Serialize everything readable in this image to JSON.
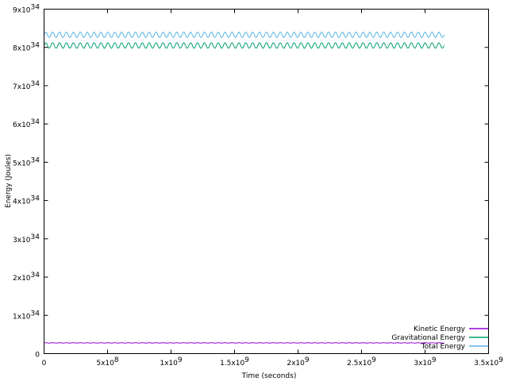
{
  "chart_data": {
    "type": "line",
    "title": "",
    "xlabel": "Time (seconds)",
    "ylabel": "Energy (Joules)",
    "xlim": [
      0,
      3500000000
    ],
    "ylim": [
      0,
      9e+34
    ],
    "grid": false,
    "legend_position": "bottom-right",
    "x_ticks": [
      {
        "value": 0,
        "base": "0",
        "exp": ""
      },
      {
        "value": 500000000,
        "base": "5x10",
        "exp": "8"
      },
      {
        "value": 1000000000,
        "base": "1x10",
        "exp": "9"
      },
      {
        "value": 1500000000,
        "base": "1.5x10",
        "exp": "9"
      },
      {
        "value": 2000000000,
        "base": "2x10",
        "exp": "9"
      },
      {
        "value": 2500000000,
        "base": "2.5x10",
        "exp": "9"
      },
      {
        "value": 3000000000,
        "base": "3x10",
        "exp": "9"
      },
      {
        "value": 3500000000,
        "base": "3.5x10",
        "exp": "9"
      }
    ],
    "y_ticks": [
      {
        "value": 0,
        "base": "0",
        "exp": ""
      },
      {
        "value": 1e+34,
        "base": "1x10",
        "exp": "34"
      },
      {
        "value": 2e+34,
        "base": "2x10",
        "exp": "34"
      },
      {
        "value": 3e+34,
        "base": "3x10",
        "exp": "34"
      },
      {
        "value": 4e+34,
        "base": "4x10",
        "exp": "34"
      },
      {
        "value": 5e+34,
        "base": "5x10",
        "exp": "34"
      },
      {
        "value": 6e+34,
        "base": "6x10",
        "exp": "34"
      },
      {
        "value": 7e+34,
        "base": "7x10",
        "exp": "34"
      },
      {
        "value": 8e+34,
        "base": "8x10",
        "exp": "34"
      },
      {
        "value": 9e+34,
        "base": "9x10",
        "exp": "34"
      }
    ],
    "x_range": [
      0,
      3150000000
    ],
    "series": [
      {
        "name": "Kinetic Energy",
        "color": "#9400d3",
        "mean": 2.8e+33,
        "amplitude": 5e+31,
        "cycles": 58
      },
      {
        "name": "Gravitational Energy",
        "color": "#009e73",
        "mean": 8.05e+34,
        "amplitude": 7e+32,
        "cycles": 58
      },
      {
        "name": "Total Energy",
        "color": "#56b4e9",
        "mean": 8.33e+34,
        "amplitude": 7e+32,
        "cycles": 58
      }
    ]
  }
}
